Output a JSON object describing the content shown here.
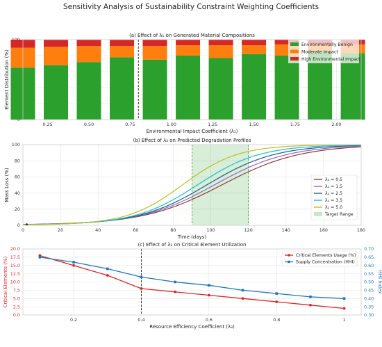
{
  "figure": {
    "suptitle": "Sensitivity Analysis of Sustainability Constraint Weighting Coefficients"
  },
  "chart_data": [
    {
      "id": "a",
      "type": "bar",
      "stacked": true,
      "title": "(a) Effect of λ₁ on Generated Material Compositions",
      "xlabel": "Environmental Impact Coefficient (λ₁)",
      "ylabel": "Element Distribution (%)",
      "xlim": [
        0.1,
        2.15
      ],
      "ylim": [
        0,
        100
      ],
      "xticks": [
        0.25,
        0.5,
        0.75,
        1.0,
        1.25,
        1.5,
        1.75,
        2.0
      ],
      "xtick_labels": [
        "0.25",
        "0.50",
        "0.75",
        "1.00",
        "1.25",
        "1.50",
        "1.75",
        "2.00"
      ],
      "yticks": [
        0,
        20,
        40,
        60,
        80,
        100
      ],
      "x": [
        0.1,
        0.3,
        0.5,
        0.7,
        0.9,
        1.1,
        1.3,
        1.5,
        1.7,
        1.9,
        2.1
      ],
      "series": [
        {
          "name": "Environmentally Benign",
          "color": "#2ca02c",
          "values": [
            65,
            68,
            72,
            78,
            75,
            80,
            77,
            82,
            80,
            85,
            83
          ]
        },
        {
          "name": "Moderate Impact",
          "color": "#ff7f0e",
          "values": [
            25,
            23,
            20,
            14,
            17,
            13,
            16,
            11,
            14,
            9,
            11
          ]
        },
        {
          "name": "High Environmental Impact",
          "color": "#d62728",
          "values": [
            10,
            9,
            8,
            8,
            8,
            7,
            7,
            7,
            6,
            6,
            6
          ]
        }
      ],
      "vline": {
        "x": 0.8,
        "style": "dashed",
        "color": "#222222"
      },
      "legend": "upper-right",
      "grid": true
    },
    {
      "id": "b",
      "type": "line",
      "title": "(b) Effect of λ₂ on Predicted Degradation Profiles",
      "xlabel": "Time (days)",
      "ylabel": "Mass Loss (%)",
      "xlim": [
        0,
        180
      ],
      "ylim": [
        0,
        100
      ],
      "xticks": [
        0,
        20,
        40,
        60,
        80,
        100,
        120,
        140,
        160,
        180
      ],
      "yticks": [
        0,
        20,
        40,
        60,
        80,
        100
      ],
      "series": [
        {
          "name": "λ₂ = 0.5",
          "color": "#8c3a3a",
          "midpoint": 106,
          "rate": 0.048,
          "start": 0.5
        },
        {
          "name": "λ₂ = 1.5",
          "color": "#9467bd",
          "midpoint": 102,
          "rate": 0.051,
          "start": 0.5
        },
        {
          "name": "λ₂ = 2.5",
          "color": "#1f5f8b",
          "midpoint": 98,
          "rate": 0.055,
          "start": 0.5
        },
        {
          "name": "λ₂ = 3.5",
          "color": "#17becf",
          "midpoint": 93,
          "rate": 0.06,
          "start": 0.5
        },
        {
          "name": "λ₂ = 5.0",
          "color": "#bcbd22",
          "midpoint": 85,
          "rate": 0.068,
          "start": 0.5
        }
      ],
      "target_range": {
        "name": "Target Range",
        "x0": 90,
        "x1": 120,
        "color": "#2ca02c"
      },
      "marker": {
        "x": 2,
        "y": 1
      },
      "legend": "lower-right",
      "grid": true
    },
    {
      "id": "c",
      "type": "line",
      "title": "(c) Effect of λ₃ on Critical Element Utilization",
      "xlabel": "Resource Efficiency Coefficient (λ₃)",
      "ylabel": "Critical Elements (%)",
      "ylabel_right": "HHI Index",
      "xlim": [
        0.05,
        1.05
      ],
      "ylim": [
        0,
        20
      ],
      "ylim_right": [
        0.3,
        0.7
      ],
      "xticks": [
        0.2,
        0.4,
        0.6,
        0.8,
        1.0
      ],
      "yticks": [
        0,
        2.5,
        5,
        7.5,
        10,
        12.5,
        15,
        17.5,
        20
      ],
      "ytick_labels": [
        "0.0",
        "2.5",
        "5.0",
        "7.5",
        "10.0",
        "12.5",
        "15.0",
        "17.5",
        "20.0"
      ],
      "yticks_right": [
        0.3,
        0.35,
        0.4,
        0.45,
        0.5,
        0.55,
        0.6,
        0.65,
        0.7
      ],
      "ytick_labels_right": [
        "0.30",
        "0.35",
        "0.40",
        "0.45",
        "0.50",
        "0.55",
        "0.60",
        "0.65",
        "0.70"
      ],
      "x": [
        0.1,
        0.2,
        0.3,
        0.4,
        0.5,
        0.6,
        0.7,
        0.8,
        0.9,
        1.0
      ],
      "series": [
        {
          "name": "Critical Elements Usage (%)",
          "color": "#d62728",
          "axis": "left",
          "marker": "circle",
          "values": [
            18,
            15,
            12,
            8,
            7,
            6,
            5,
            4,
            3,
            2
          ]
        },
        {
          "name": "Supply Concentration (HHI)",
          "color": "#1f77b4",
          "axis": "right",
          "marker": "square",
          "values": [
            0.65,
            0.62,
            0.58,
            0.53,
            0.5,
            0.48,
            0.45,
            0.43,
            0.41,
            0.4
          ]
        }
      ],
      "vline": {
        "x": 0.4,
        "style": "dashed",
        "color": "#222222"
      },
      "legend": "upper-right",
      "grid": true
    }
  ]
}
